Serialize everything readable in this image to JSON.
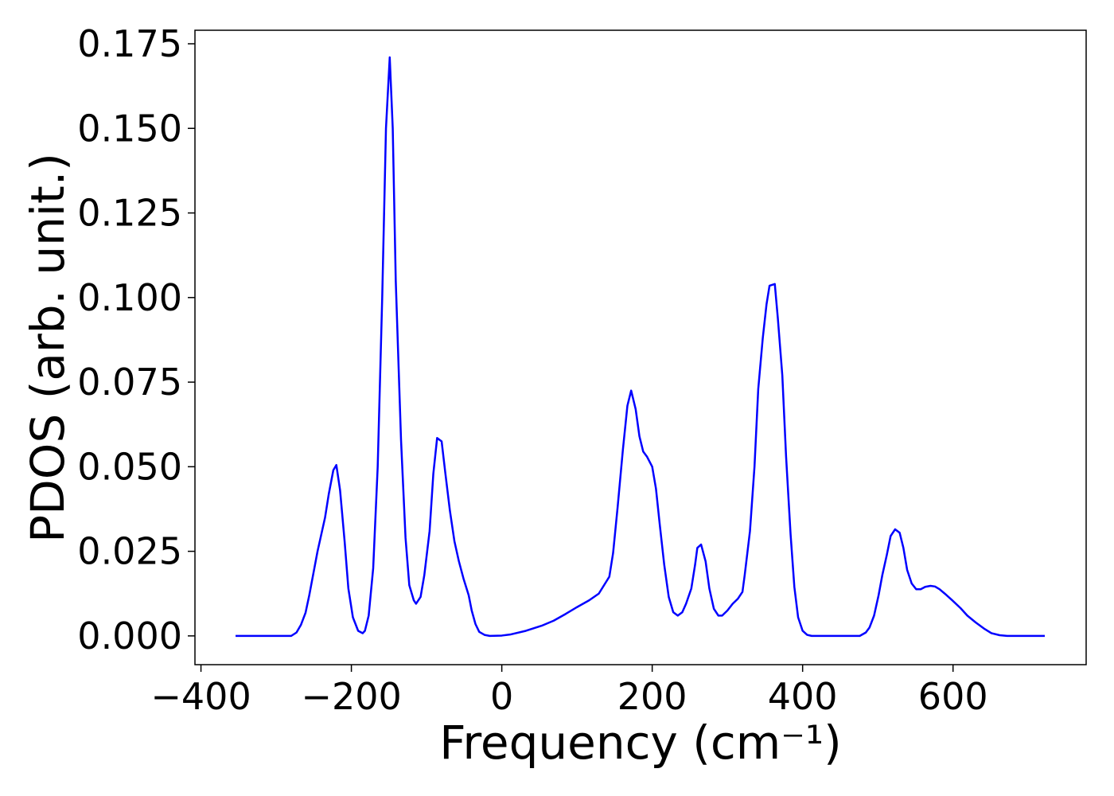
{
  "chart_data": {
    "type": "line",
    "xlabel": "Frequency (cm⁻¹)",
    "ylabel": "PDOS (arb. unit.)",
    "xlim": [
      -408,
      777
    ],
    "ylim": [
      -0.0085,
      0.179
    ],
    "xticks": [
      {
        "value": -400,
        "label": "−400"
      },
      {
        "value": -200,
        "label": "−200"
      },
      0,
      200,
      400,
      600
    ],
    "yticks": [
      {
        "value": 0,
        "label": "0.000"
      },
      {
        "value": 0.025,
        "label": "0.025"
      },
      {
        "value": 0.05,
        "label": "0.050"
      },
      {
        "value": 0.075,
        "label": "0.075"
      },
      {
        "value": 0.1,
        "label": "0.100"
      },
      {
        "value": 0.125,
        "label": "0.125"
      },
      {
        "value": 0.15,
        "label": "0.150"
      },
      {
        "value": 0.175,
        "label": "0.175"
      }
    ],
    "x": [
      -354,
      -280,
      -273,
      -267,
      -261,
      -256,
      -245,
      -235,
      -230,
      -224,
      -220,
      -215,
      -209,
      -204,
      -198,
      -191,
      -185,
      -182,
      -177,
      -171,
      -165,
      -159,
      -154,
      -149,
      -145,
      -141,
      -134,
      -128,
      -123,
      -117,
      -114,
      -108,
      -103,
      -96,
      -91,
      -86,
      -80,
      -75,
      -69,
      -63,
      -57,
      -51,
      -44,
      -40,
      -35,
      -30,
      -23,
      -16,
      0,
      11,
      32,
      53,
      69,
      85,
      100,
      116,
      129,
      136,
      143,
      148,
      154,
      161,
      167,
      172,
      178,
      183,
      188,
      193,
      200,
      205,
      210,
      216,
      222,
      228,
      234,
      240,
      245,
      252,
      257,
      260,
      265,
      271,
      276,
      282,
      288,
      293,
      300,
      307,
      314,
      320,
      323,
      330,
      336,
      341,
      347,
      352,
      356,
      363,
      367,
      373,
      378,
      384,
      389,
      394,
      400,
      406,
      412,
      476,
      484,
      489,
      495,
      501,
      506,
      512,
      517,
      523,
      529,
      534,
      539,
      545,
      551,
      557,
      563,
      570,
      576,
      582,
      589,
      599,
      610,
      619,
      630,
      641,
      651,
      662,
      672,
      722
    ],
    "series": [
      {
        "name": "PDOS",
        "color": "#0000ff",
        "values": [
          0,
          0,
          0.001,
          0.0033,
          0.0068,
          0.012,
          0.025,
          0.035,
          0.042,
          0.049,
          0.0505,
          0.043,
          0.028,
          0.014,
          0.0055,
          0.0015,
          0.0008,
          0.0015,
          0.006,
          0.02,
          0.05,
          0.1,
          0.15,
          0.171,
          0.15,
          0.105,
          0.058,
          0.029,
          0.015,
          0.0105,
          0.0095,
          0.0115,
          0.018,
          0.031,
          0.048,
          0.0585,
          0.0575,
          0.048,
          0.037,
          0.028,
          0.022,
          0.017,
          0.012,
          0.0075,
          0.0035,
          0.0012,
          0.0003,
          0,
          0.0001,
          0.0004,
          0.0015,
          0.003,
          0.0045,
          0.0065,
          0.0085,
          0.0105,
          0.0125,
          0.015,
          0.0175,
          0.0245,
          0.038,
          0.055,
          0.068,
          0.0725,
          0.067,
          0.059,
          0.0545,
          0.053,
          0.05,
          0.0435,
          0.033,
          0.021,
          0.0115,
          0.007,
          0.006,
          0.007,
          0.0095,
          0.014,
          0.021,
          0.026,
          0.027,
          0.022,
          0.014,
          0.008,
          0.006,
          0.006,
          0.0075,
          0.0095,
          0.011,
          0.013,
          0.018,
          0.031,
          0.05,
          0.073,
          0.088,
          0.098,
          0.1035,
          0.104,
          0.094,
          0.077,
          0.053,
          0.03,
          0.0145,
          0.0055,
          0.0015,
          0.0003,
          0,
          0,
          0.001,
          0.0025,
          0.006,
          0.012,
          0.018,
          0.024,
          0.0295,
          0.0315,
          0.0305,
          0.026,
          0.0195,
          0.0155,
          0.0138,
          0.0138,
          0.0145,
          0.0148,
          0.0146,
          0.0138,
          0.0125,
          0.0105,
          0.0082,
          0.006,
          0.004,
          0.0022,
          0.0008,
          0.0002,
          0,
          0
        ]
      }
    ]
  }
}
